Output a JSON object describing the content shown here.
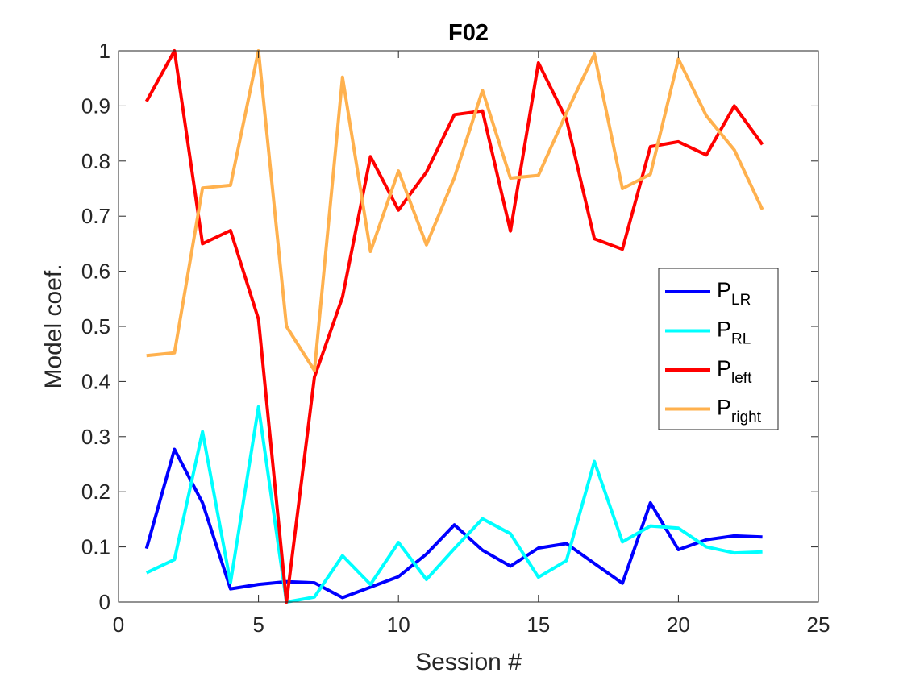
{
  "chart_data": {
    "type": "line",
    "title": "F02",
    "xlabel": "Session #",
    "ylabel": "Model coef.",
    "xlim": [
      0,
      25
    ],
    "ylim": [
      0,
      1
    ],
    "xticks": [
      0,
      5,
      10,
      15,
      20,
      25
    ],
    "yticks": [
      0,
      0.1,
      0.2,
      0.3,
      0.4,
      0.5,
      0.6,
      0.7,
      0.8,
      0.9,
      1
    ],
    "xtick_labels": [
      "0",
      "5",
      "10",
      "15",
      "20",
      "25"
    ],
    "ytick_labels": [
      "0",
      "0.1",
      "0.2",
      "0.3",
      "0.4",
      "0.5",
      "0.6",
      "0.7",
      "0.8",
      "0.9",
      "1"
    ],
    "grid": false,
    "legend_position": "right",
    "x": [
      1,
      2,
      3,
      4,
      5,
      6,
      7,
      8,
      9,
      10,
      11,
      12,
      13,
      14,
      15,
      16,
      17,
      18,
      19,
      20,
      21,
      22,
      23
    ],
    "series": [
      {
        "name": "P_LR",
        "legend_main": "P",
        "legend_sub": "LR",
        "color": "#0000ff",
        "values": [
          0.097,
          0.277,
          0.18,
          0.024,
          0.032,
          0.037,
          0.035,
          0.008,
          0.027,
          0.046,
          0.087,
          0.14,
          0.094,
          0.065,
          0.098,
          0.106,
          0.07,
          0.034,
          0.18,
          0.095,
          0.113,
          0.12,
          0.118
        ]
      },
      {
        "name": "P_RL",
        "legend_main": "P",
        "legend_sub": "RL",
        "color": "#00ffff",
        "values": [
          0.053,
          0.077,
          0.309,
          0.035,
          0.354,
          0.0,
          0.009,
          0.084,
          0.032,
          0.108,
          0.041,
          0.097,
          0.151,
          0.124,
          0.045,
          0.075,
          0.255,
          0.109,
          0.138,
          0.134,
          0.1,
          0.089,
          0.091
        ]
      },
      {
        "name": "P_left",
        "legend_main": "P",
        "legend_sub": "left",
        "color": "#ff0000",
        "values": [
          0.908,
          1.0,
          0.65,
          0.674,
          0.513,
          0.0,
          0.408,
          0.553,
          0.808,
          0.711,
          0.78,
          0.884,
          0.891,
          0.673,
          0.978,
          0.876,
          0.659,
          0.64,
          0.826,
          0.835,
          0.811,
          0.9,
          0.83
        ]
      },
      {
        "name": "P_right",
        "legend_main": "P",
        "legend_sub": "right",
        "color": "#ffb14e",
        "values": [
          0.447,
          0.452,
          0.751,
          0.756,
          1.0,
          0.5,
          0.42,
          0.952,
          0.636,
          0.782,
          0.648,
          0.77,
          0.928,
          0.769,
          0.774,
          0.887,
          0.994,
          0.75,
          0.776,
          0.985,
          0.882,
          0.82,
          0.712
        ]
      }
    ]
  }
}
